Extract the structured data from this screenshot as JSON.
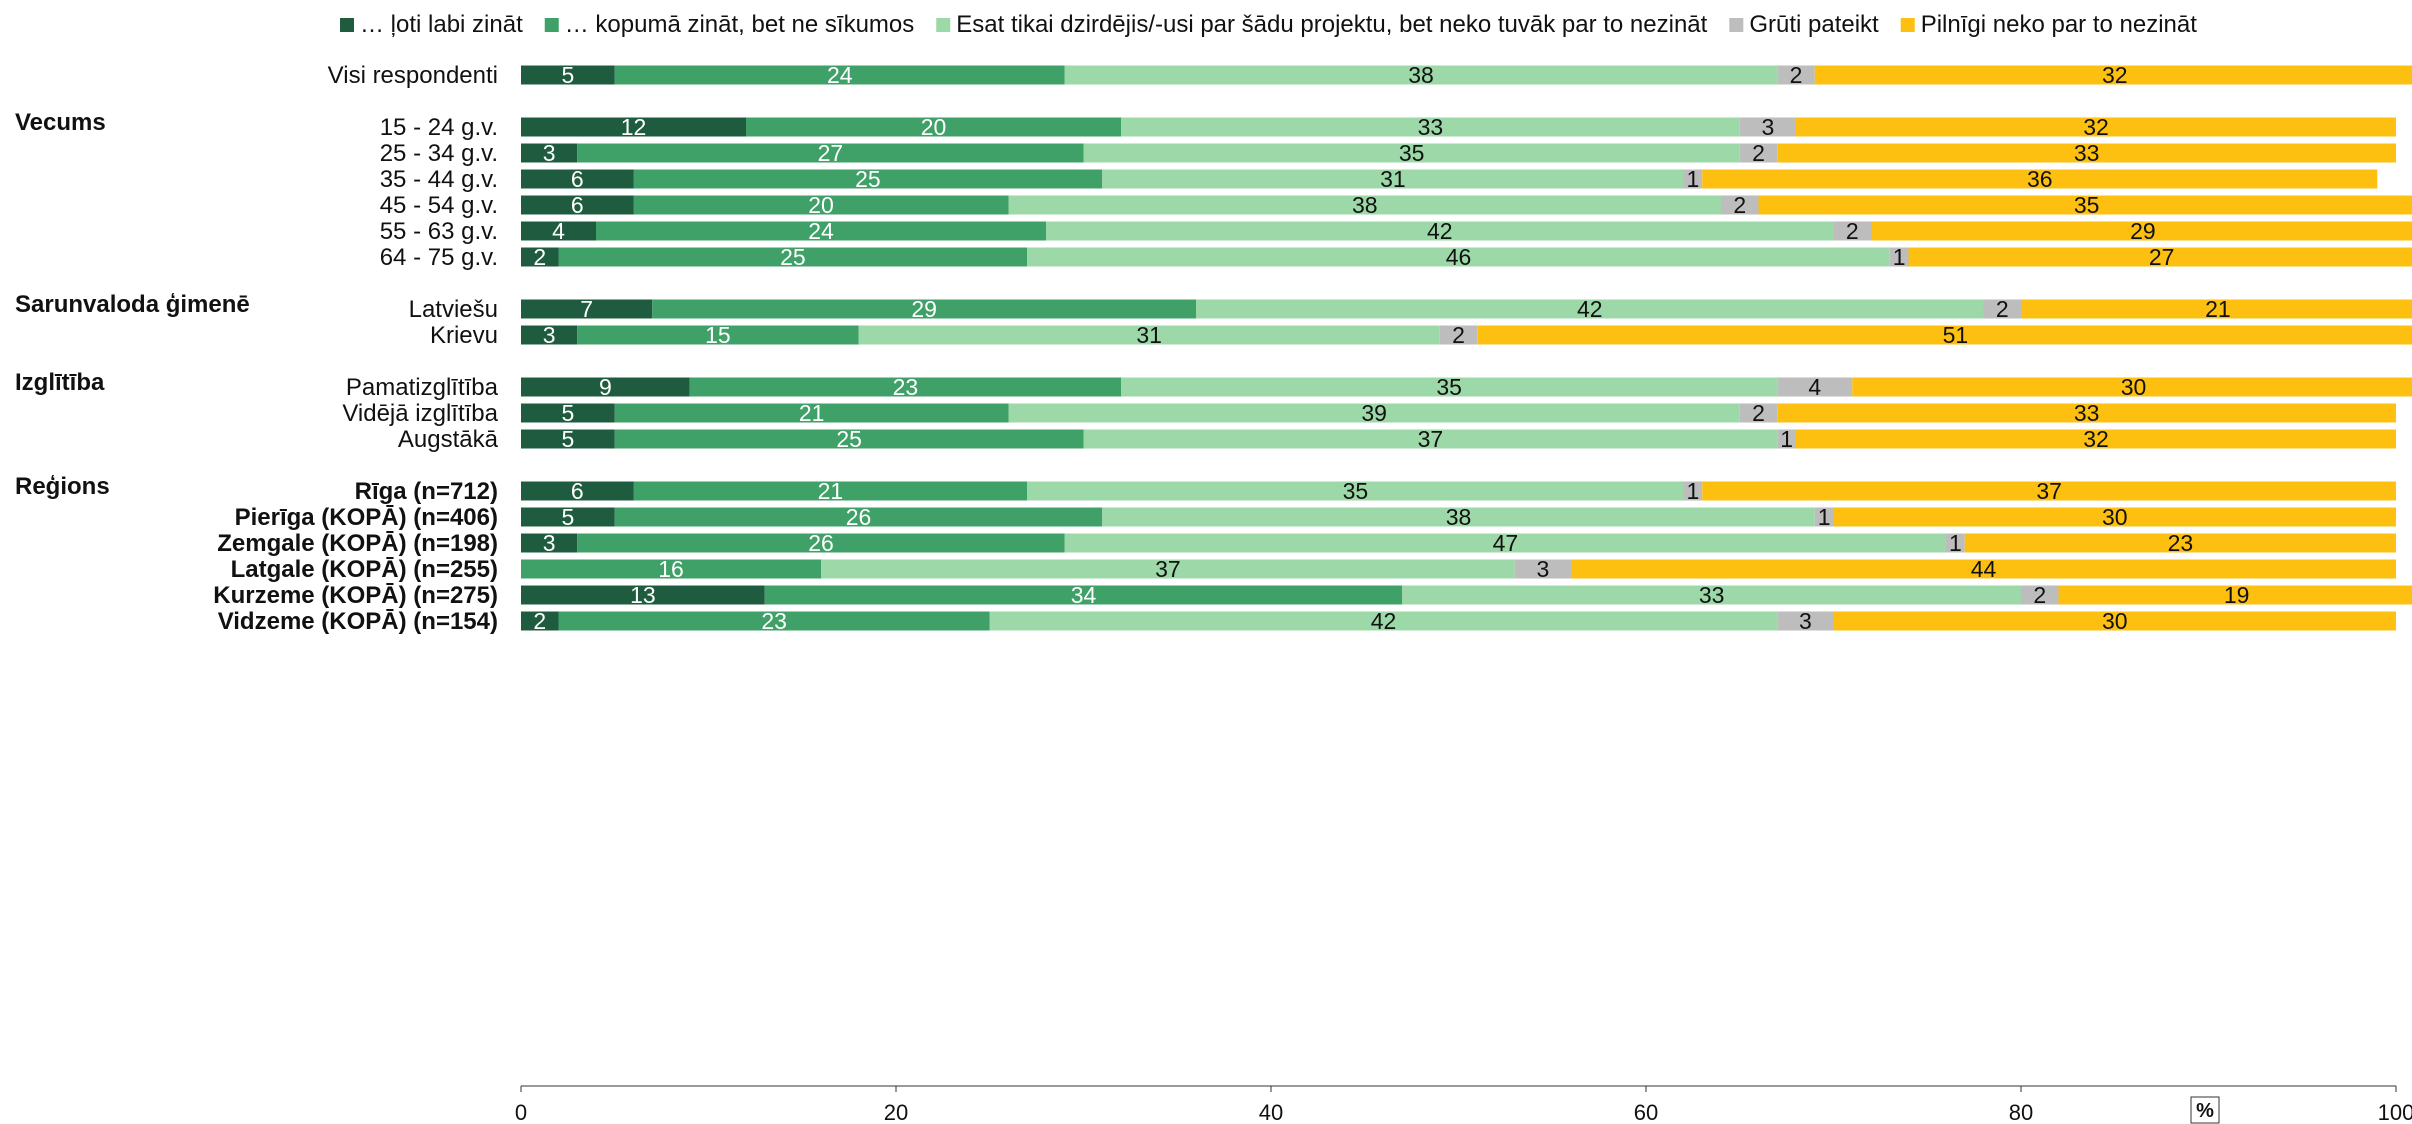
{
  "chart_data": {
    "type": "bar",
    "orientation": "horizontal",
    "stacked": true,
    "legend_position": "top",
    "xlim": [
      0,
      100
    ],
    "x_ticks": [
      0,
      20,
      40,
      60,
      80,
      100
    ],
    "unit_label": "%",
    "series": [
      {
        "name": "… ļoti labi zināt",
        "color": "#1f5c3f",
        "label_color": "#ffffff"
      },
      {
        "name": "… kopumā zināt, bet ne sīkumos",
        "color": "#3fa068",
        "label_color": "#ffffff"
      },
      {
        "name": "Esat tikai dzirdējis/-usi par šādu projektu, bet neko tuvāk par to nezināt",
        "color": "#9dd8a8",
        "label_color": "#111111"
      },
      {
        "name": "Grūti pateikt",
        "color": "#bdbdbd",
        "label_color": "#111111"
      },
      {
        "name": "Pilnīgi neko par to nezināt",
        "color": "#fdc010",
        "label_color": "#111111"
      }
    ],
    "groups": [
      {
        "name": "",
        "rows": [
          {
            "label": "Visi respondenti",
            "bold": false,
            "values": [
              5,
              24,
              38,
              2,
              32
            ]
          }
        ]
      },
      {
        "name": "Vecums",
        "rows": [
          {
            "label": "15 - 24 g.v.",
            "bold": false,
            "values": [
              12,
              20,
              33,
              3,
              32
            ]
          },
          {
            "label": "25 - 34 g.v.",
            "bold": false,
            "values": [
              3,
              27,
              35,
              2,
              33
            ]
          },
          {
            "label": "35 - 44 g.v.",
            "bold": false,
            "values": [
              6,
              25,
              31,
              1,
              36
            ]
          },
          {
            "label": "45 - 54 g.v.",
            "bold": false,
            "values": [
              6,
              20,
              38,
              2,
              35
            ]
          },
          {
            "label": "55 - 63 g.v.",
            "bold": false,
            "values": [
              4,
              24,
              42,
              2,
              29
            ]
          },
          {
            "label": "64 - 75 g.v.",
            "bold": false,
            "values": [
              2,
              25,
              46,
              1,
              27
            ]
          }
        ]
      },
      {
        "name": "Sarunvaloda ģimenē",
        "rows": [
          {
            "label": "Latviešu",
            "bold": false,
            "values": [
              7,
              29,
              42,
              2,
              21
            ]
          },
          {
            "label": "Krievu",
            "bold": false,
            "values": [
              3,
              15,
              31,
              2,
              51
            ]
          }
        ]
      },
      {
        "name": "Izglītība",
        "rows": [
          {
            "label": "Pamatizglītība",
            "bold": false,
            "values": [
              9,
              23,
              35,
              4,
              30
            ]
          },
          {
            "label": "Vidējā izglītība",
            "bold": false,
            "values": [
              5,
              21,
              39,
              2,
              33
            ]
          },
          {
            "label": "Augstākā",
            "bold": false,
            "values": [
              5,
              25,
              37,
              1,
              32
            ]
          }
        ]
      },
      {
        "name": "Reģions",
        "rows": [
          {
            "label": "Rīga (n=712)",
            "bold": true,
            "values": [
              6,
              21,
              35,
              1,
              37
            ]
          },
          {
            "label": "Pierīga (KOPĀ) (n=406)",
            "bold": true,
            "values": [
              5,
              26,
              38,
              1,
              30
            ]
          },
          {
            "label": "Zemgale (KOPĀ) (n=198)",
            "bold": true,
            "values": [
              3,
              26,
              47,
              1,
              23
            ]
          },
          {
            "label": "Latgale (KOPĀ) (n=255)",
            "bold": true,
            "values": [
              0,
              16,
              37,
              3,
              44
            ]
          },
          {
            "label": "Kurzeme (KOPĀ) (n=275)",
            "bold": true,
            "values": [
              13,
              34,
              33,
              2,
              19
            ]
          },
          {
            "label": "Vidzeme (KOPĀ) (n=154)",
            "bold": true,
            "values": [
              2,
              23,
              42,
              3,
              30
            ]
          }
        ]
      }
    ]
  }
}
